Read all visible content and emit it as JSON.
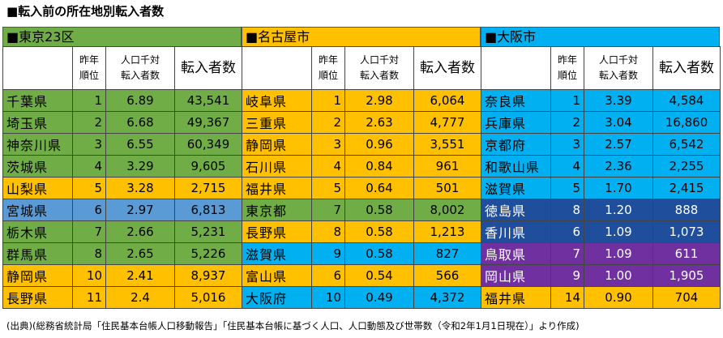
{
  "title": "■転入前の所在地別転入者数",
  "source": "(出典)(総務省統計局「住民基本台帳人口移動報告」「住民基本台帳に基づく人口、人口動態及び世帯数（令和2年1月1日現在）」より作成)",
  "colors": {
    "green": "#70ad47",
    "yellow": "#ffc000",
    "blue": "#00b0f0",
    "steel": "#5b9bd5",
    "navy": "#1f4e9c",
    "purple": "#7030a0"
  },
  "headers": {
    "rank_line1": "昨年",
    "rank_line2": "順位",
    "rate_line1": "人口千対",
    "rate_line2": "転入者数",
    "count": "転入者数"
  },
  "panels": [
    {
      "name": "■東京23区",
      "color": "green",
      "rows": [
        {
          "pref": "千葉県",
          "rank": "1",
          "rate": "6.89",
          "count": "43,541",
          "color": "green"
        },
        {
          "pref": "埼玉県",
          "rank": "2",
          "rate": "6.68",
          "count": "49,367",
          "color": "green"
        },
        {
          "pref": "神奈川県",
          "rank": "3",
          "rate": "6.55",
          "count": "60,349",
          "color": "green"
        },
        {
          "pref": "茨城県",
          "rank": "4",
          "rate": "3.29",
          "count": "9,605",
          "color": "green"
        },
        {
          "pref": "山梨県",
          "rank": "5",
          "rate": "3.28",
          "count": "2,715",
          "color": "yellow"
        },
        {
          "pref": "宮城県",
          "rank": "6",
          "rate": "2.97",
          "count": "6,813",
          "color": "steel"
        },
        {
          "pref": "栃木県",
          "rank": "7",
          "rate": "2.66",
          "count": "5,231",
          "color": "green"
        },
        {
          "pref": "群馬県",
          "rank": "8",
          "rate": "2.65",
          "count": "5,226",
          "color": "green"
        },
        {
          "pref": "静岡県",
          "rank": "10",
          "rate": "2.41",
          "count": "8,937",
          "color": "yellow"
        },
        {
          "pref": "長野県",
          "rank": "11",
          "rate": "2.4",
          "count": "5,016",
          "color": "yellow"
        }
      ]
    },
    {
      "name": "■名古屋市",
      "color": "yellow",
      "rows": [
        {
          "pref": "岐阜県",
          "rank": "1",
          "rate": "2.98",
          "count": "6,064",
          "color": "yellow"
        },
        {
          "pref": "三重県",
          "rank": "2",
          "rate": "2.63",
          "count": "4,777",
          "color": "yellow"
        },
        {
          "pref": "静岡県",
          "rank": "3",
          "rate": "0.96",
          "count": "3,551",
          "color": "yellow"
        },
        {
          "pref": "石川県",
          "rank": "4",
          "rate": "0.84",
          "count": "961",
          "color": "yellow"
        },
        {
          "pref": "福井県",
          "rank": "5",
          "rate": "0.64",
          "count": "501",
          "color": "yellow"
        },
        {
          "pref": "東京都",
          "rank": "7",
          "rate": "0.58",
          "count": "8,002",
          "color": "green"
        },
        {
          "pref": "長野県",
          "rank": "8",
          "rate": "0.58",
          "count": "1,213",
          "color": "yellow"
        },
        {
          "pref": "滋賀県",
          "rank": "9",
          "rate": "0.58",
          "count": "827",
          "color": "blue"
        },
        {
          "pref": "富山県",
          "rank": "6",
          "rate": "0.54",
          "count": "566",
          "color": "yellow"
        },
        {
          "pref": "大阪府",
          "rank": "10",
          "rate": "0.49",
          "count": "4,372",
          "color": "blue"
        }
      ]
    },
    {
      "name": "■大阪市",
      "color": "blue",
      "rows": [
        {
          "pref": "奈良県",
          "rank": "1",
          "rate": "3.39",
          "count": "4,584",
          "color": "blue"
        },
        {
          "pref": "兵庫県",
          "rank": "2",
          "rate": "3.04",
          "count": "16,860",
          "color": "blue"
        },
        {
          "pref": "京都府",
          "rank": "3",
          "rate": "2.57",
          "count": "6,542",
          "color": "blue"
        },
        {
          "pref": "和歌山県",
          "rank": "4",
          "rate": "2.36",
          "count": "2,255",
          "color": "blue"
        },
        {
          "pref": "滋賀県",
          "rank": "5",
          "rate": "1.70",
          "count": "2,415",
          "color": "blue"
        },
        {
          "pref": "徳島県",
          "rank": "8",
          "rate": "1.20",
          "count": "888",
          "color": "navy"
        },
        {
          "pref": "香川県",
          "rank": "6",
          "rate": "1.09",
          "count": "1,073",
          "color": "navy"
        },
        {
          "pref": "鳥取県",
          "rank": "7",
          "rate": "1.09",
          "count": "611",
          "color": "purple"
        },
        {
          "pref": "岡山県",
          "rank": "9",
          "rate": "1.00",
          "count": "1,905",
          "color": "purple"
        },
        {
          "pref": "福井県",
          "rank": "14",
          "rate": "0.90",
          "count": "704",
          "color": "yellow"
        }
      ]
    }
  ]
}
